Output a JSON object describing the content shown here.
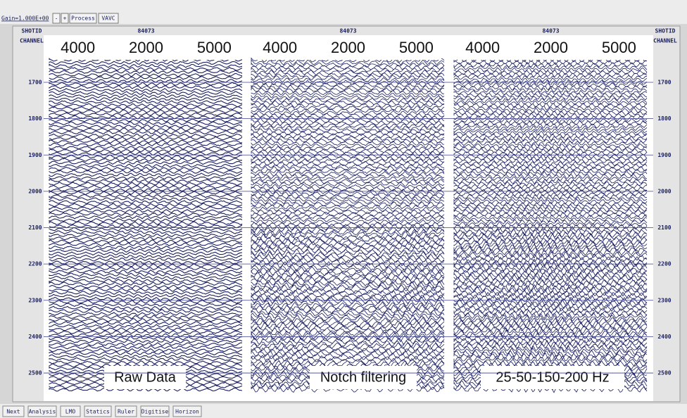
{
  "toolbar": {
    "gain": "Gain=1.000E+00",
    "minus": "-",
    "plus": "+",
    "process": "Process",
    "vavc": "VAVC"
  },
  "header": {
    "left_shotid": "SHOTID",
    "left_channel": "CHANNEL",
    "right_shotid": "SHOTID",
    "right_channel": "CHANNEL",
    "shots": [
      "84073",
      "84073",
      "84073"
    ]
  },
  "panels": [
    {
      "labels": [
        "4000",
        "2000",
        "5000"
      ],
      "title": "Raw Data"
    },
    {
      "labels": [
        "4000",
        "2000",
        "5000"
      ],
      "title": "Notch filtering"
    },
    {
      "labels": [
        "4000",
        "2000",
        "5000"
      ],
      "title": "25-50-150-200 Hz"
    }
  ],
  "axis": {
    "ticks": [
      1700,
      1800,
      1900,
      2000,
      2100,
      2200,
      2300,
      2400,
      2500
    ]
  },
  "bottom_bar": [
    "Next",
    "Analysis",
    "LMO",
    "Statics",
    "Ruler",
    "Digitise",
    "Horizon"
  ]
}
